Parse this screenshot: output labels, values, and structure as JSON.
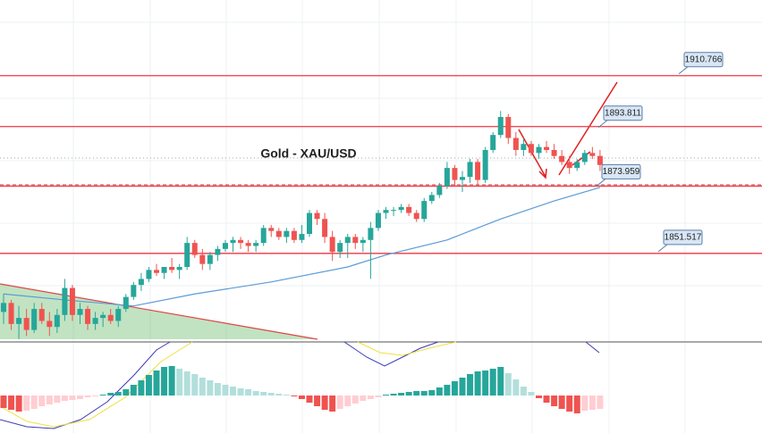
{
  "chart_data": {
    "type": "candlestick",
    "title": "Gold - XAU/USD",
    "ylim": [
      1822,
      1936
    ],
    "candles": [
      [
        1832,
        1838,
        1828,
        1835
      ],
      [
        1835,
        1836,
        1826,
        1828
      ],
      [
        1828,
        1834,
        1823,
        1830
      ],
      [
        1830,
        1833,
        1824,
        1826
      ],
      [
        1826,
        1835,
        1825,
        1833
      ],
      [
        1833,
        1835,
        1828,
        1829
      ],
      [
        1829,
        1832,
        1824,
        1827
      ],
      [
        1827,
        1833,
        1825,
        1831
      ],
      [
        1831,
        1843,
        1829,
        1840
      ],
      [
        1840,
        1841,
        1829,
        1831
      ],
      [
        1831,
        1835,
        1828,
        1833
      ],
      [
        1833,
        1834,
        1826,
        1828
      ],
      [
        1828,
        1832,
        1826,
        1830
      ],
      [
        1830,
        1832,
        1827,
        1831
      ],
      [
        1831,
        1833,
        1828,
        1829
      ],
      [
        1829,
        1834,
        1827,
        1833
      ],
      [
        1833,
        1838,
        1832,
        1837
      ],
      [
        1837,
        1842,
        1836,
        1841
      ],
      [
        1841,
        1845,
        1839,
        1843
      ],
      [
        1843,
        1847,
        1842,
        1846
      ],
      [
        1846,
        1848,
        1844,
        1845
      ],
      [
        1845,
        1847,
        1843,
        1847
      ],
      [
        1847,
        1850,
        1845,
        1846
      ],
      [
        1846,
        1848,
        1843,
        1847
      ],
      [
        1847,
        1857,
        1846,
        1855
      ],
      [
        1855,
        1856,
        1850,
        1851
      ],
      [
        1851,
        1853,
        1846,
        1848
      ],
      [
        1848,
        1852,
        1846,
        1851
      ],
      [
        1851,
        1854,
        1849,
        1853
      ],
      [
        1853,
        1856,
        1852,
        1855
      ],
      [
        1855,
        1857,
        1852,
        1856
      ],
      [
        1856,
        1857,
        1853,
        1855
      ],
      [
        1855,
        1856,
        1852,
        1854
      ],
      [
        1854,
        1856,
        1852,
        1855
      ],
      [
        1855,
        1861,
        1854,
        1860
      ],
      [
        1860,
        1861,
        1857,
        1859
      ],
      [
        1859,
        1860,
        1856,
        1857
      ],
      [
        1857,
        1860,
        1855,
        1859
      ],
      [
        1859,
        1860,
        1855,
        1856
      ],
      [
        1856,
        1861,
        1855,
        1858
      ],
      [
        1858,
        1866,
        1857,
        1865
      ],
      [
        1865,
        1866,
        1861,
        1863
      ],
      [
        1863,
        1865,
        1855,
        1857
      ],
      [
        1857,
        1859,
        1849,
        1852
      ],
      [
        1852,
        1856,
        1850,
        1855
      ],
      [
        1855,
        1858,
        1850,
        1857
      ],
      [
        1857,
        1858,
        1853,
        1855
      ],
      [
        1855,
        1857,
        1852,
        1856
      ],
      [
        1856,
        1862,
        1843,
        1860
      ],
      [
        1860,
        1866,
        1859,
        1865
      ],
      [
        1865,
        1867,
        1863,
        1866
      ],
      [
        1866,
        1867,
        1864,
        1866
      ],
      [
        1866,
        1868,
        1865,
        1867
      ],
      [
        1867,
        1868,
        1864,
        1865
      ],
      [
        1865,
        1866,
        1862,
        1863
      ],
      [
        1863,
        1870,
        1862,
        1869
      ],
      [
        1869,
        1872,
        1868,
        1871
      ],
      [
        1871,
        1875,
        1870,
        1874
      ],
      [
        1874,
        1882,
        1873,
        1880
      ],
      [
        1880,
        1881,
        1874,
        1876
      ],
      [
        1876,
        1879,
        1872,
        1877
      ],
      [
        1877,
        1883,
        1875,
        1882
      ],
      [
        1882,
        1883,
        1874,
        1876
      ],
      [
        1876,
        1887,
        1875,
        1886
      ],
      [
        1886,
        1892,
        1885,
        1891
      ],
      [
        1891,
        1899,
        1890,
        1897
      ],
      [
        1897,
        1898,
        1888,
        1890
      ],
      [
        1890,
        1892,
        1884,
        1886
      ],
      [
        1886,
        1890,
        1884,
        1888
      ],
      [
        1888,
        1889,
        1884,
        1885
      ],
      [
        1885,
        1888,
        1883,
        1887
      ],
      [
        1887,
        1889,
        1885,
        1886
      ],
      [
        1886,
        1888,
        1883,
        1884
      ],
      [
        1884,
        1886,
        1881,
        1882
      ],
      [
        1882,
        1884,
        1878,
        1880
      ],
      [
        1880,
        1883,
        1879,
        1882
      ],
      [
        1882,
        1886,
        1881,
        1885
      ],
      [
        1885,
        1887,
        1883,
        1884
      ],
      [
        1884,
        1886,
        1879,
        1881
      ]
    ],
    "up_color": "#26a69a",
    "down_color": "#ef5350",
    "ma": {
      "color": "#5b9bd5",
      "x": [
        0,
        8,
        17,
        25,
        35,
        45,
        50,
        58,
        65,
        72,
        78
      ],
      "values": [
        1838,
        1836,
        1834,
        1838,
        1842,
        1847,
        1851,
        1856,
        1863,
        1869,
        1873.5
      ]
    },
    "levels": [
      1910.766,
      1893.811,
      1873.959,
      1851.517
    ],
    "level_color": "#f23645",
    "macd_ylim": [
      -42,
      60
    ],
    "histogram": [
      -14,
      -16,
      -18,
      -17,
      -15,
      -12,
      -10,
      -8,
      -6,
      -5,
      -4,
      -2,
      -1,
      1,
      3,
      4,
      7,
      12,
      17,
      23,
      28,
      32,
      33,
      30,
      27,
      24,
      20,
      17,
      14,
      12,
      10,
      8,
      7,
      5,
      4,
      3,
      2,
      1,
      -1,
      -4,
      -8,
      -12,
      -16,
      -18,
      -15,
      -12,
      -9,
      -6,
      -4,
      -2,
      1,
      2,
      3,
      4,
      5,
      5,
      6,
      9,
      12,
      16,
      20,
      24,
      27,
      28,
      30,
      32,
      25,
      18,
      10,
      4,
      -3,
      -8,
      -12,
      -15,
      -18,
      -20,
      -17,
      -16,
      -15
    ]
  }
}
